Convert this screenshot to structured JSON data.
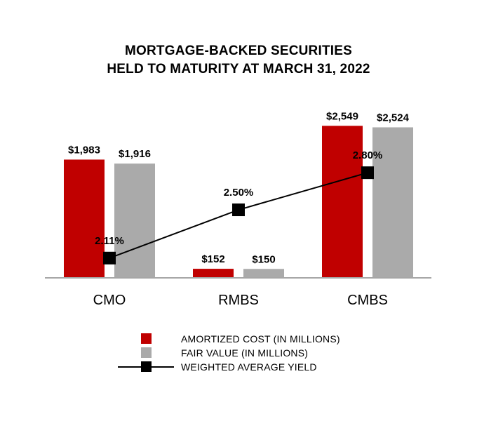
{
  "title": {
    "line1": "MORTGAGE-BACKED SECURITIES",
    "line2": "HELD TO MATURITY AT MARCH 31, 2022"
  },
  "colors": {
    "amortized": "#c00000",
    "fair": "#aaaaaa",
    "yield": "#000000",
    "axis": "#a6a6a6"
  },
  "chart_data": {
    "type": "bar",
    "title": "MORTGAGE-BACKED SECURITIES HELD TO MATURITY AT MARCH 31, 2022",
    "categories": [
      "CMO",
      "RMBS",
      "CMBS"
    ],
    "ylim": [
      0,
      2800
    ],
    "series": [
      {
        "name": "AMORTIZED COST (IN MILLIONS)",
        "values": [
          1983,
          152,
          2549
        ],
        "labels": [
          "$1,983",
          "$152",
          "$2,549"
        ]
      },
      {
        "name": "FAIR VALUE (IN MILLIONS)",
        "values": [
          1916,
          150,
          2524
        ],
        "labels": [
          "$1,916",
          "$150",
          "$2,524"
        ]
      }
    ],
    "line_series": {
      "name": "WEIGHTED AVERAGE YIELD",
      "type": "line",
      "values": [
        2.11,
        2.5,
        2.8
      ],
      "labels": [
        "2.11%",
        "2.50%",
        "2.80%"
      ],
      "ylim": [
        1.95,
        3.3
      ]
    }
  },
  "legend": [
    {
      "key": "amortized",
      "label": "AMORTIZED COST (IN MILLIONS)"
    },
    {
      "key": "fair",
      "label": "FAIR VALUE (IN MILLIONS)"
    },
    {
      "key": "yield",
      "label": "WEIGHTED AVERAGE YIELD"
    }
  ]
}
